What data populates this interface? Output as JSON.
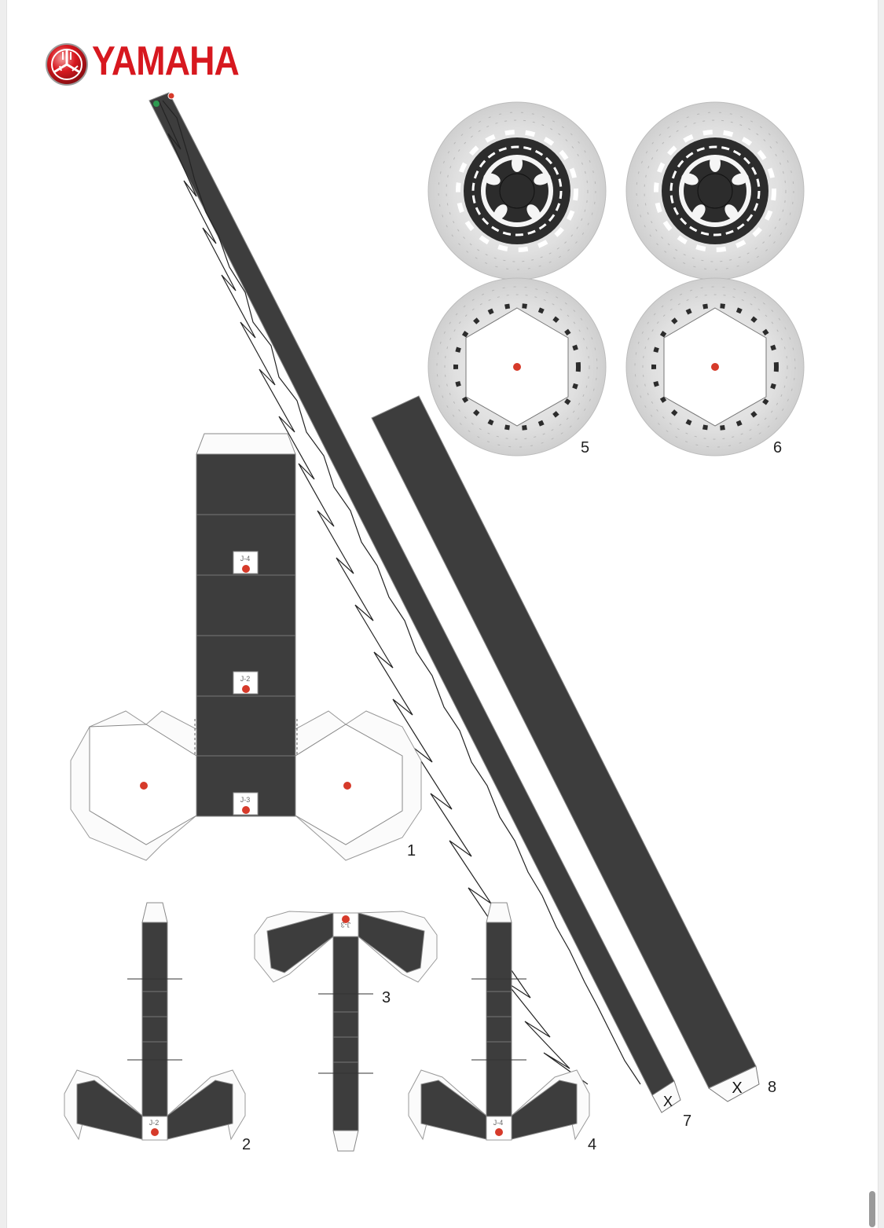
{
  "brand": {
    "name": "YAMAHA",
    "color": "#d7181f",
    "emblem_icon": "tuning-forks-emblem-icon"
  },
  "parts": [
    {
      "label": "1"
    },
    {
      "label": "2"
    },
    {
      "label": "3"
    },
    {
      "label": "4"
    },
    {
      "label": "5"
    },
    {
      "label": "6"
    },
    {
      "label": "7"
    },
    {
      "label": "8"
    }
  ],
  "joint_labels": [
    "J-4",
    "J-2",
    "J-3",
    "J-2",
    "J-3",
    "J-4"
  ],
  "cut_marks": [
    "X",
    "X"
  ],
  "colors": {
    "part_fill": "#3d3d3d",
    "glue_dot": "#d63a2a",
    "disc_metal": "#e4e4e4",
    "tab_fill": "#fbfbfb"
  }
}
